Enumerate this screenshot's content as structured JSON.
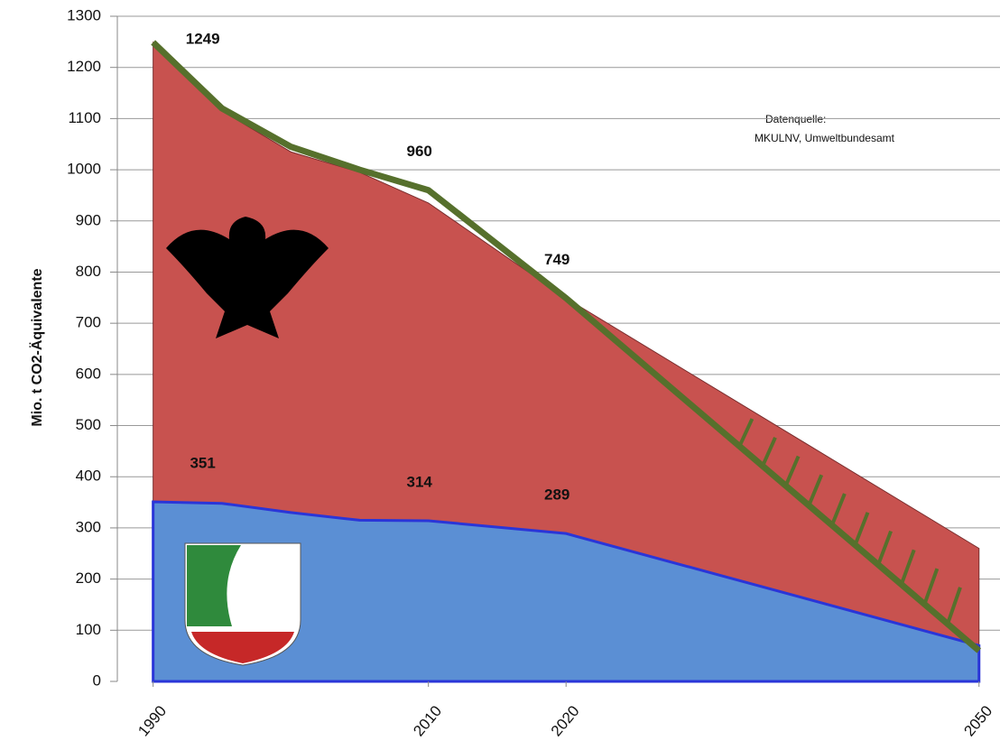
{
  "chart_data": {
    "type": "area",
    "y_label": "Mio. t CO2-Äquivalente",
    "annotation": [
      "Datenquelle:",
      "MKULNV, Umweltbundesamt"
    ],
    "x": [
      1990,
      1995,
      2000,
      2005,
      2010,
      2020,
      2050
    ],
    "xlim": [
      1987.4,
      2051
    ],
    "xticks": [
      1990,
      2010,
      2020,
      2050
    ],
    "ylim": [
      0,
      1300
    ],
    "yticks": [
      0,
      100,
      200,
      300,
      400,
      500,
      600,
      700,
      800,
      900,
      1000,
      1100,
      1200,
      1300
    ],
    "grid": true,
    "series": [
      {
        "kind": "area",
        "color": "#c8524f",
        "values": [
          1249,
          1115,
          1035,
          995,
          935,
          749,
          260
        ],
        "data_labels": []
      },
      {
        "kind": "area",
        "color": "#5b8fd4",
        "values": [
          351,
          348,
          330,
          315,
          314,
          289,
          70
        ],
        "data_labels": [
          0,
          4,
          5
        ]
      },
      {
        "kind": "line",
        "color": "#56702c",
        "values": [
          1249,
          1120,
          1045,
          1000,
          960,
          749,
          60
        ],
        "data_labels": [
          0,
          4,
          5
        ]
      }
    ]
  }
}
